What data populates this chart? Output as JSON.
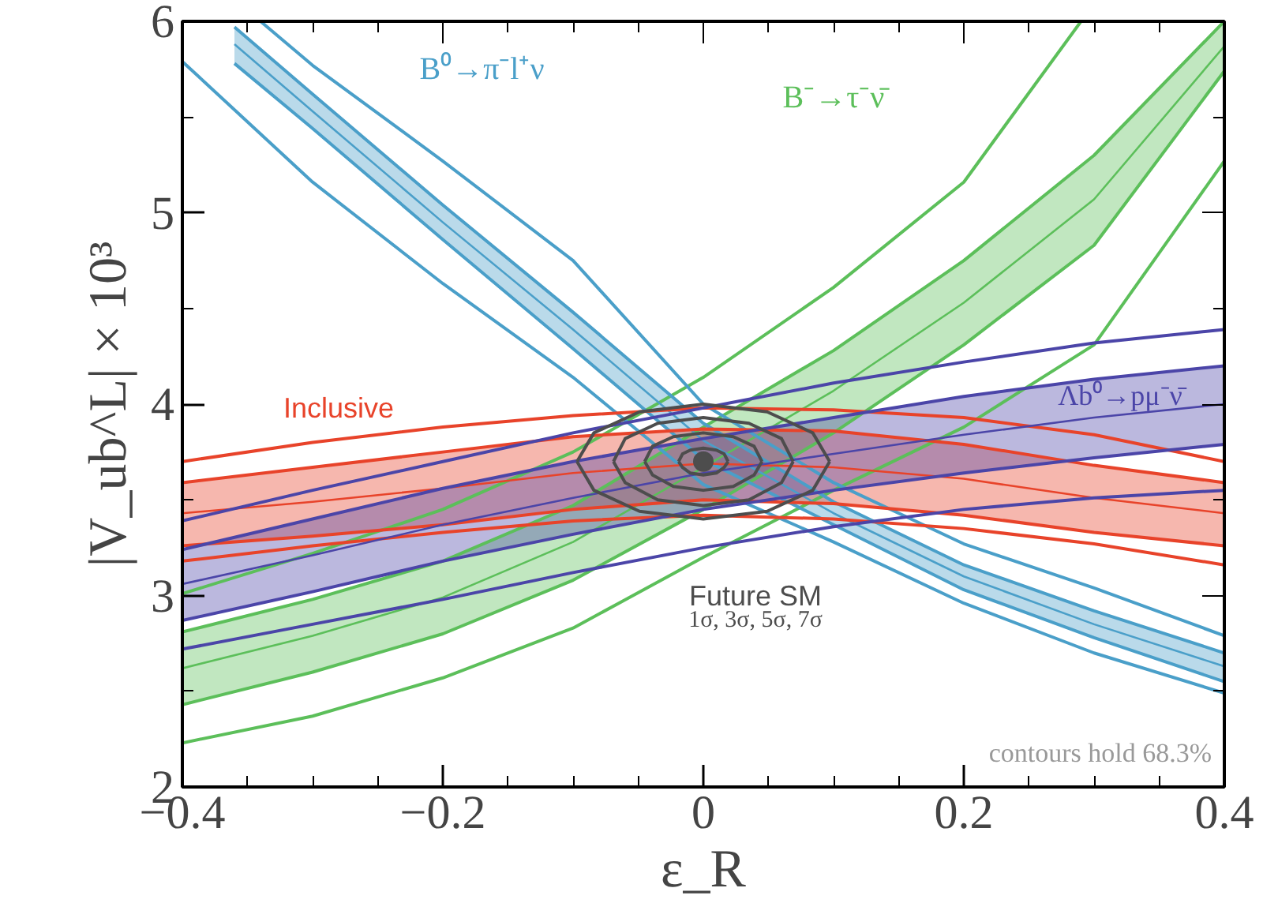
{
  "chart_data": {
    "type": "line",
    "xlabel": "ε_R",
    "ylabel": "|V_ub^L| × 10³",
    "x": [
      -0.4,
      -0.3,
      -0.2,
      -0.1,
      0,
      0.1,
      0.2,
      0.3,
      0.4
    ],
    "xlim": [
      -0.4,
      0.4
    ],
    "ylim": [
      2,
      6
    ],
    "xticks": [
      {
        "value": -0.4,
        "label": "−0.4"
      },
      {
        "value": -0.2,
        "label": "−0.2"
      },
      0,
      0.2,
      0.4
    ],
    "yticks": [
      2,
      3,
      4,
      5,
      6
    ],
    "grid": false,
    "marker": "none",
    "line_style": "solid",
    "series": [
      {
        "color": "#5cbf5a",
        "values": [
          2.62,
          2.79,
          2.99,
          3.28,
          3.67,
          4.07,
          4.53,
          5.07,
          5.87
        ],
        "lower": [
          2.43,
          2.6,
          2.8,
          3.08,
          3.45,
          3.85,
          4.31,
          4.83,
          5.74
        ],
        "upper": [
          2.81,
          2.98,
          3.18,
          3.47,
          3.88,
          4.28,
          4.75,
          5.3,
          6.0
        ]
      },
      {
        "color": "#5cbf5a",
        "values": [
          2.43,
          2.6,
          2.8,
          3.08,
          3.45,
          3.85,
          4.31,
          4.83,
          5.74
        ]
      },
      {
        "color": "#5cbf5a",
        "values": [
          2.81,
          2.98,
          3.18,
          3.47,
          3.88,
          4.28,
          4.75,
          5.3,
          6.0
        ]
      },
      {
        "color": "#5cbf5a",
        "x": [
          -0.4,
          -0.3,
          -0.2,
          -0.1,
          0,
          0.1,
          0.2,
          0.29
        ],
        "values": [
          3.01,
          3.22,
          3.45,
          3.75,
          4.14,
          4.61,
          5.16,
          6.0
        ]
      },
      {
        "color": "#5cbf5a",
        "values": [
          2.23,
          2.37,
          2.57,
          2.83,
          3.2,
          3.55,
          3.88,
          4.31,
          5.27
        ]
      },
      {
        "color": "#4a9fc9",
        "x": [
          -0.36,
          -0.3,
          -0.2,
          -0.1,
          0,
          0.1,
          0.2,
          0.3,
          0.4
        ],
        "values": [
          5.88,
          5.53,
          4.95,
          4.39,
          3.81,
          3.43,
          3.1,
          2.85,
          2.63
        ],
        "lower": [
          5.78,
          5.44,
          4.86,
          4.29,
          3.71,
          3.37,
          3.03,
          2.78,
          2.55
        ],
        "upper": [
          5.97,
          5.62,
          5.04,
          4.48,
          3.9,
          3.49,
          3.16,
          2.92,
          2.7
        ]
      },
      {
        "color": "#4a9fc9",
        "x": [
          -0.36,
          -0.3,
          -0.2,
          -0.1,
          0,
          0.1,
          0.2,
          0.3,
          0.4
        ],
        "values": [
          5.78,
          5.44,
          4.86,
          4.29,
          3.71,
          3.37,
          3.03,
          2.78,
          2.55
        ]
      },
      {
        "color": "#4a9fc9",
        "x": [
          -0.36,
          -0.3,
          -0.2,
          -0.1,
          0,
          0.1,
          0.2,
          0.3,
          0.4
        ],
        "values": [
          5.97,
          5.62,
          5.04,
          4.48,
          3.9,
          3.49,
          3.16,
          2.92,
          2.7
        ]
      },
      {
        "color": "#4a9fc9",
        "x": [
          -0.34,
          -0.3,
          -0.2,
          -0.1,
          0,
          0.1,
          0.2,
          0.3,
          0.4
        ],
        "values": [
          6.0,
          5.77,
          5.27,
          4.75,
          4.0,
          3.59,
          3.27,
          3.04,
          2.79
        ]
      },
      {
        "color": "#4a9fc9",
        "values": [
          5.79,
          5.16,
          4.63,
          4.14,
          3.58,
          3.28,
          2.96,
          2.7,
          2.49
        ]
      },
      {
        "color": "#e8432a",
        "values": [
          3.43,
          3.49,
          3.56,
          3.64,
          3.69,
          3.67,
          3.61,
          3.51,
          3.43
        ],
        "lower": [
          3.26,
          3.31,
          3.37,
          3.45,
          3.5,
          3.48,
          3.42,
          3.33,
          3.26
        ],
        "upper": [
          3.59,
          3.67,
          3.75,
          3.83,
          3.87,
          3.86,
          3.79,
          3.68,
          3.59
        ]
      },
      {
        "color": "#e8432a",
        "values": [
          3.26,
          3.31,
          3.37,
          3.45,
          3.5,
          3.48,
          3.42,
          3.33,
          3.26
        ]
      },
      {
        "color": "#e8432a",
        "values": [
          3.59,
          3.67,
          3.75,
          3.83,
          3.87,
          3.86,
          3.79,
          3.68,
          3.59
        ]
      },
      {
        "color": "#e8432a",
        "values": [
          3.7,
          3.8,
          3.88,
          3.94,
          3.98,
          3.97,
          3.93,
          3.84,
          3.7
        ]
      },
      {
        "color": "#e8432a",
        "values": [
          3.18,
          3.26,
          3.33,
          3.39,
          3.42,
          3.4,
          3.35,
          3.27,
          3.16
        ]
      },
      {
        "color": "#4b45a8",
        "values": [
          3.06,
          3.21,
          3.37,
          3.51,
          3.64,
          3.74,
          3.84,
          3.93,
          4.0
        ],
        "lower": [
          2.87,
          3.02,
          3.18,
          3.32,
          3.45,
          3.55,
          3.64,
          3.72,
          3.79
        ],
        "upper": [
          3.24,
          3.4,
          3.56,
          3.7,
          3.82,
          3.93,
          4.04,
          4.13,
          4.2
        ]
      },
      {
        "color": "#4b45a8",
        "values": [
          2.87,
          3.02,
          3.18,
          3.32,
          3.45,
          3.55,
          3.64,
          3.72,
          3.79
        ]
      },
      {
        "color": "#4b45a8",
        "values": [
          3.24,
          3.4,
          3.56,
          3.7,
          3.82,
          3.93,
          4.04,
          4.13,
          4.2
        ]
      },
      {
        "color": "#4b45a8",
        "values": [
          3.39,
          3.55,
          3.7,
          3.85,
          3.98,
          4.11,
          4.22,
          4.32,
          4.39
        ]
      },
      {
        "color": "#4b45a8",
        "values": [
          2.72,
          2.85,
          2.98,
          3.12,
          3.25,
          3.36,
          3.45,
          3.51,
          3.55
        ]
      },
      {
        "color": "#4d4d4d",
        "x": [
          -0.019,
          -0.016,
          -0.01,
          0,
          0.01,
          0.016,
          0.019
        ],
        "values": [
          3.7,
          3.74,
          3.76,
          3.77,
          3.76,
          3.74,
          3.7
        ]
      },
      {
        "color": "#4d4d4d",
        "x": [
          -0.019,
          -0.016,
          -0.01,
          0,
          0.01,
          0.016,
          0.019
        ],
        "values": [
          3.7,
          3.67,
          3.64,
          3.63,
          3.64,
          3.67,
          3.7
        ]
      },
      {
        "color": "#4d4d4d",
        "x": [
          -0.045,
          -0.039,
          -0.023,
          0,
          0.023,
          0.039,
          0.045
        ],
        "values": [
          3.7,
          3.78,
          3.83,
          3.85,
          3.83,
          3.78,
          3.7
        ]
      },
      {
        "color": "#4d4d4d",
        "x": [
          -0.045,
          -0.039,
          -0.023,
          0,
          0.023,
          0.039,
          0.045
        ],
        "values": [
          3.7,
          3.63,
          3.57,
          3.55,
          3.57,
          3.63,
          3.7
        ]
      },
      {
        "color": "#4d4d4d",
        "x": [
          -0.069,
          -0.06,
          -0.035,
          0,
          0.035,
          0.06,
          0.069
        ],
        "values": [
          3.7,
          3.82,
          3.9,
          3.93,
          3.9,
          3.82,
          3.7
        ]
      },
      {
        "color": "#4d4d4d",
        "x": [
          -0.069,
          -0.06,
          -0.035,
          0,
          0.035,
          0.06,
          0.069
        ],
        "values": [
          3.7,
          3.59,
          3.5,
          3.47,
          3.5,
          3.59,
          3.7
        ]
      },
      {
        "color": "#4d4d4d",
        "x": [
          -0.097,
          -0.084,
          -0.049,
          0,
          0.049,
          0.084,
          0.097
        ],
        "values": [
          3.7,
          3.85,
          3.96,
          4.0,
          3.96,
          3.85,
          3.7
        ]
      },
      {
        "color": "#4d4d4d",
        "x": [
          -0.097,
          -0.084,
          -0.049,
          0,
          0.049,
          0.084,
          0.097
        ],
        "values": [
          3.7,
          3.55,
          3.44,
          3.4,
          3.44,
          3.55,
          3.7
        ]
      },
      {
        "type": "scatter",
        "marker": "circle",
        "color": "#4d4d4d",
        "x": [
          0
        ],
        "values": [
          3.7
        ]
      }
    ],
    "annotations": [
      "B⁰→π⁻l⁺ν",
      "B⁻→τ⁻ν̄",
      "Λb⁰→pμ⁻ν̄",
      "Inclusive",
      "Future SM",
      "1σ, 3σ, 5σ, 7σ",
      "contours hold 68.3%"
    ]
  }
}
